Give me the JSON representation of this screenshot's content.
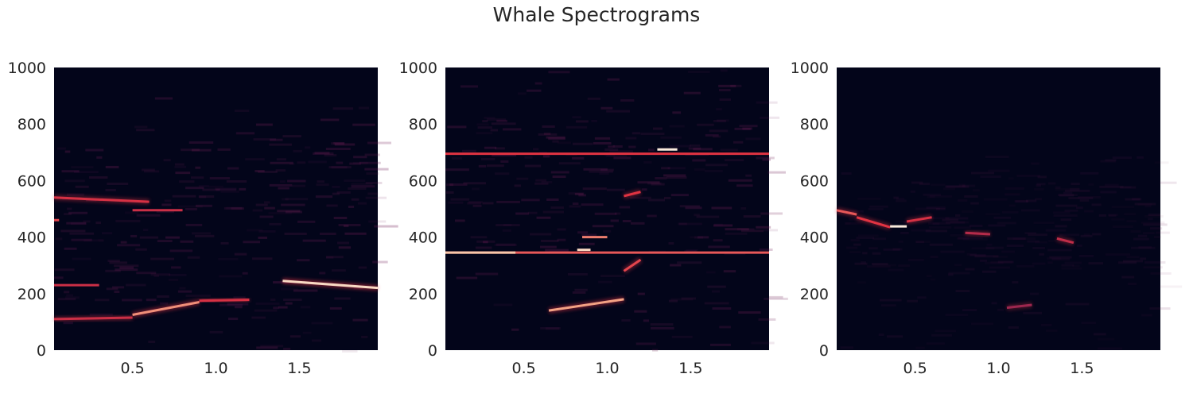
{
  "figure": {
    "title": "Whale Spectrograms"
  },
  "colors": {
    "background": "#03051A",
    "mid": "#701F57",
    "accent": "#E13342",
    "bright": "#F6B48F",
    "peak": "#FAEBDD"
  },
  "chart_data": [
    {
      "type": "heatmap",
      "title": "",
      "xlabel": "",
      "ylabel": "",
      "xlim": [
        0.03,
        1.97
      ],
      "ylim": [
        0,
        1000
      ],
      "xticks": [
        0.5,
        1.0,
        1.5
      ],
      "xtick_labels": [
        "0.5",
        "1.0",
        "1.5"
      ],
      "yticks": [
        0,
        200,
        400,
        600,
        800,
        1000
      ],
      "ytick_labels": [
        "0",
        "200",
        "400",
        "600",
        "800",
        "1000"
      ],
      "grid": false,
      "colormap": "rocket",
      "features": [
        {
          "t0": 0.03,
          "t1": 0.5,
          "f0": 110,
          "f1": 115,
          "level": 0.4
        },
        {
          "t0": 0.5,
          "t1": 0.9,
          "f0": 125,
          "f1": 170,
          "level": 0.75
        },
        {
          "t0": 0.9,
          "t1": 1.2,
          "f0": 175,
          "f1": 178,
          "level": 0.45
        },
        {
          "t0": 1.4,
          "t1": 1.97,
          "f0": 245,
          "f1": 220,
          "level": 0.95
        },
        {
          "t0": 0.03,
          "t1": 0.3,
          "f0": 230,
          "f1": 230,
          "level": 0.4
        },
        {
          "t0": 0.03,
          "t1": 0.6,
          "f0": 540,
          "f1": 525,
          "level": 0.45
        },
        {
          "t0": 0.5,
          "t1": 0.8,
          "f0": 495,
          "f1": 495,
          "level": 0.4
        },
        {
          "t0": 0.03,
          "t1": 0.06,
          "f0": 460,
          "f1": 460,
          "level": 0.55
        }
      ]
    },
    {
      "type": "heatmap",
      "title": "",
      "xlabel": "",
      "ylabel": "",
      "xlim": [
        0.03,
        1.97
      ],
      "ylim": [
        0,
        1000
      ],
      "xticks": [
        0.5,
        1.0,
        1.5
      ],
      "xtick_labels": [
        "0.5",
        "1.0",
        "1.5"
      ],
      "yticks": [
        0,
        200,
        400,
        600,
        800,
        1000
      ],
      "ytick_labels": [
        "0",
        "200",
        "400",
        "600",
        "800",
        "1000"
      ],
      "grid": false,
      "colormap": "rocket",
      "features": [
        {
          "t0": 0.03,
          "t1": 1.97,
          "f0": 345,
          "f1": 345,
          "level": 0.6
        },
        {
          "t0": 0.03,
          "t1": 0.45,
          "f0": 345,
          "f1": 345,
          "level": 0.9
        },
        {
          "t0": 0.03,
          "t1": 1.97,
          "f0": 695,
          "f1": 695,
          "level": 0.5
        },
        {
          "t0": 1.3,
          "t1": 1.42,
          "f0": 710,
          "f1": 710,
          "level": 1.0
        },
        {
          "t0": 0.65,
          "t1": 1.1,
          "f0": 140,
          "f1": 180,
          "level": 0.8
        },
        {
          "t0": 1.1,
          "t1": 1.2,
          "f0": 280,
          "f1": 320,
          "level": 0.55
        },
        {
          "t0": 0.82,
          "t1": 0.9,
          "f0": 355,
          "f1": 355,
          "level": 0.95
        },
        {
          "t0": 0.85,
          "t1": 1.0,
          "f0": 400,
          "f1": 400,
          "level": 0.7
        },
        {
          "t0": 1.1,
          "t1": 1.2,
          "f0": 545,
          "f1": 560,
          "level": 0.5
        }
      ]
    },
    {
      "type": "heatmap",
      "title": "",
      "xlabel": "",
      "ylabel": "",
      "xlim": [
        0.03,
        1.97
      ],
      "ylim": [
        0,
        1000
      ],
      "xticks": [
        0.5,
        1.0,
        1.5
      ],
      "xtick_labels": [
        "0.5",
        "1.0",
        "1.5"
      ],
      "yticks": [
        0,
        200,
        400,
        600,
        800,
        1000
      ],
      "ytick_labels": [
        "0",
        "200",
        "400",
        "600",
        "800",
        "1000"
      ],
      "grid": false,
      "colormap": "rocket",
      "features": [
        {
          "t0": 0.03,
          "t1": 0.15,
          "f0": 495,
          "f1": 480,
          "level": 0.6
        },
        {
          "t0": 0.15,
          "t1": 0.35,
          "f0": 470,
          "f1": 435,
          "level": 0.5
        },
        {
          "t0": 0.35,
          "t1": 0.45,
          "f0": 438,
          "f1": 438,
          "level": 1.0
        },
        {
          "t0": 0.45,
          "t1": 0.6,
          "f0": 455,
          "f1": 470,
          "level": 0.45
        },
        {
          "t0": 0.8,
          "t1": 0.95,
          "f0": 415,
          "f1": 410,
          "level": 0.3
        },
        {
          "t0": 1.35,
          "t1": 1.45,
          "f0": 395,
          "f1": 380,
          "level": 0.35
        },
        {
          "t0": 1.05,
          "t1": 1.2,
          "f0": 150,
          "f1": 160,
          "level": 0.2
        }
      ]
    }
  ]
}
